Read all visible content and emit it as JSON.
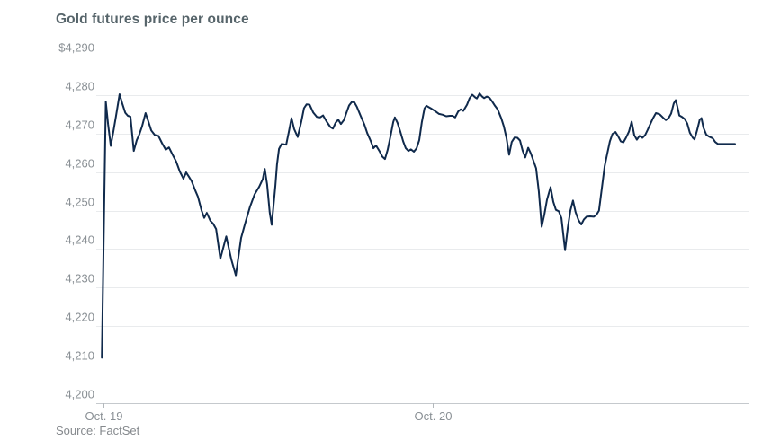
{
  "header": {
    "title": "Gold futures price per ounce"
  },
  "footer": {
    "source": "Source: FactSet"
  },
  "chart_data": {
    "type": "line",
    "title": "Gold futures price per ounce",
    "source": "Source: FactSet",
    "series_name": "Gold futures price (USD per ounce)",
    "ylim": [
      4200,
      4290
    ],
    "y_tick_step": 10,
    "y_tick_labels_top_to_bottom": [
      "$4,290",
      "4,280",
      "4,270",
      "4,260",
      "4,250",
      "4,240",
      "4,230",
      "4,220",
      "4,210",
      "4,200"
    ],
    "x_unit": "days, 0 = Oct. 19 tick, 1 = Oct. 20 tick",
    "x_ticks": [
      {
        "t": 0,
        "label": "Oct. 19"
      },
      {
        "t": 1,
        "label": "Oct. 20"
      }
    ],
    "grid": true,
    "legend": false,
    "colors": {
      "line": "#102a4c",
      "grid": "#e9ebed",
      "axis": "#c5c9cd",
      "tick": "#b3b8bc",
      "label": "#8a9095",
      "title": "#56646a",
      "source": "#85898d",
      "background": "#ffffff"
    },
    "points": [
      [
        -0.005,
        4211.8
      ],
      [
        0.007,
        4278.3
      ],
      [
        0.014,
        4272.5
      ],
      [
        0.022,
        4266.8
      ],
      [
        0.03,
        4270.5
      ],
      [
        0.038,
        4274.5
      ],
      [
        0.049,
        4280.2
      ],
      [
        0.057,
        4277.8
      ],
      [
        0.066,
        4275.4
      ],
      [
        0.074,
        4274.6
      ],
      [
        0.082,
        4274.4
      ],
      [
        0.092,
        4265.5
      ],
      [
        0.101,
        4268.3
      ],
      [
        0.109,
        4269.8
      ],
      [
        0.117,
        4271.8
      ],
      [
        0.128,
        4275.3
      ],
      [
        0.137,
        4273.0
      ],
      [
        0.145,
        4270.8
      ],
      [
        0.156,
        4269.6
      ],
      [
        0.167,
        4269.4
      ],
      [
        0.178,
        4267.5
      ],
      [
        0.189,
        4265.8
      ],
      [
        0.199,
        4266.4
      ],
      [
        0.21,
        4264.5
      ],
      [
        0.221,
        4262.7
      ],
      [
        0.232,
        4260.1
      ],
      [
        0.243,
        4258.3
      ],
      [
        0.251,
        4259.9
      ],
      [
        0.26,
        4258.7
      ],
      [
        0.268,
        4257.6
      ],
      [
        0.279,
        4255.2
      ],
      [
        0.287,
        4253.6
      ],
      [
        0.298,
        4250.0
      ],
      [
        0.306,
        4248.1
      ],
      [
        0.314,
        4249.4
      ],
      [
        0.325,
        4247.3
      ],
      [
        0.333,
        4246.6
      ],
      [
        0.342,
        4245.2
      ],
      [
        0.355,
        4237.5
      ],
      [
        0.373,
        4243.3
      ],
      [
        0.388,
        4237.4
      ],
      [
        0.402,
        4233.2
      ],
      [
        0.418,
        4242.9
      ],
      [
        0.432,
        4247.2
      ],
      [
        0.445,
        4251.0
      ],
      [
        0.459,
        4254.2
      ],
      [
        0.473,
        4256.2
      ],
      [
        0.484,
        4258.2
      ],
      [
        0.49,
        4260.8
      ],
      [
        0.497,
        4256.8
      ],
      [
        0.505,
        4249.5
      ],
      [
        0.511,
        4246.3
      ],
      [
        0.516,
        4251.0
      ],
      [
        0.522,
        4256.5
      ],
      [
        0.527,
        4262.0
      ],
      [
        0.533,
        4266.0
      ],
      [
        0.541,
        4267.3
      ],
      [
        0.549,
        4267.2
      ],
      [
        0.555,
        4267.1
      ],
      [
        0.563,
        4270.5
      ],
      [
        0.571,
        4274.0
      ],
      [
        0.579,
        4271.2
      ],
      [
        0.59,
        4269.1
      ],
      [
        0.601,
        4273.2
      ],
      [
        0.609,
        4276.6
      ],
      [
        0.617,
        4277.6
      ],
      [
        0.626,
        4277.5
      ],
      [
        0.637,
        4275.5
      ],
      [
        0.648,
        4274.3
      ],
      [
        0.658,
        4274.2
      ],
      [
        0.667,
        4274.7
      ],
      [
        0.678,
        4273.1
      ],
      [
        0.689,
        4271.7
      ],
      [
        0.697,
        4271.3
      ],
      [
        0.705,
        4272.8
      ],
      [
        0.713,
        4273.6
      ],
      [
        0.721,
        4272.5
      ],
      [
        0.73,
        4273.5
      ],
      [
        0.738,
        4275.4
      ],
      [
        0.746,
        4277.3
      ],
      [
        0.754,
        4278.2
      ],
      [
        0.762,
        4278.1
      ],
      [
        0.77,
        4276.9
      ],
      [
        0.779,
        4275.0
      ],
      [
        0.792,
        4272.4
      ],
      [
        0.801,
        4270.1
      ],
      [
        0.812,
        4268.0
      ],
      [
        0.82,
        4266.2
      ],
      [
        0.828,
        4266.9
      ],
      [
        0.839,
        4265.3
      ],
      [
        0.847,
        4264.0
      ],
      [
        0.855,
        4263.4
      ],
      [
        0.863,
        4265.8
      ],
      [
        0.872,
        4269.5
      ],
      [
        0.88,
        4273.0
      ],
      [
        0.885,
        4274.2
      ],
      [
        0.893,
        4272.8
      ],
      [
        0.902,
        4270.4
      ],
      [
        0.91,
        4268.0
      ],
      [
        0.918,
        4266.2
      ],
      [
        0.926,
        4265.5
      ],
      [
        0.934,
        4265.9
      ],
      [
        0.943,
        4265.3
      ],
      [
        0.951,
        4266.2
      ],
      [
        0.959,
        4268.3
      ],
      [
        0.967,
        4273.0
      ],
      [
        0.975,
        4276.5
      ],
      [
        0.981,
        4277.2
      ],
      [
        0.989,
        4276.8
      ],
      [
        0.997,
        4276.4
      ],
      [
        1.008,
        4275.8
      ],
      [
        1.019,
        4275.1
      ],
      [
        1.03,
        4274.9
      ],
      [
        1.041,
        4274.5
      ],
      [
        1.052,
        4274.6
      ],
      [
        1.06,
        4274.6
      ],
      [
        1.068,
        4274.2
      ],
      [
        1.077,
        4275.7
      ],
      [
        1.085,
        4276.3
      ],
      [
        1.093,
        4275.9
      ],
      [
        1.104,
        4277.5
      ],
      [
        1.112,
        4279.2
      ],
      [
        1.12,
        4280.1
      ],
      [
        1.129,
        4279.4
      ],
      [
        1.134,
        4279.1
      ],
      [
        1.142,
        4280.4
      ],
      [
        1.15,
        4279.6
      ],
      [
        1.156,
        4279.2
      ],
      [
        1.164,
        4279.6
      ],
      [
        1.172,
        4279.3
      ],
      [
        1.18,
        4278.4
      ],
      [
        1.189,
        4277.2
      ],
      [
        1.197,
        4276.3
      ],
      [
        1.208,
        4274.0
      ],
      [
        1.216,
        4271.8
      ],
      [
        1.224,
        4268.8
      ],
      [
        1.232,
        4264.5
      ],
      [
        1.24,
        4267.8
      ],
      [
        1.249,
        4269.0
      ],
      [
        1.257,
        4268.9
      ],
      [
        1.265,
        4268.2
      ],
      [
        1.273,
        4265.6
      ],
      [
        1.281,
        4263.8
      ],
      [
        1.29,
        4266.3
      ],
      [
        1.298,
        4264.8
      ],
      [
        1.306,
        4262.9
      ],
      [
        1.314,
        4261.0
      ],
      [
        1.322,
        4255.0
      ],
      [
        1.331,
        4245.8
      ],
      [
        1.339,
        4249.0
      ],
      [
        1.347,
        4252.8
      ],
      [
        1.358,
        4256.1
      ],
      [
        1.366,
        4252.3
      ],
      [
        1.374,
        4250.2
      ],
      [
        1.383,
        4249.8
      ],
      [
        1.391,
        4248.0
      ],
      [
        1.402,
        4239.7
      ],
      [
        1.41,
        4245.5
      ],
      [
        1.418,
        4250.0
      ],
      [
        1.426,
        4252.6
      ],
      [
        1.434,
        4249.6
      ],
      [
        1.443,
        4247.5
      ],
      [
        1.451,
        4246.4
      ],
      [
        1.459,
        4247.7
      ],
      [
        1.467,
        4248.4
      ],
      [
        1.478,
        4248.5
      ],
      [
        1.489,
        4248.4
      ],
      [
        1.497,
        4248.9
      ],
      [
        1.505,
        4250.0
      ],
      [
        1.514,
        4256.0
      ],
      [
        1.522,
        4261.5
      ],
      [
        1.53,
        4264.8
      ],
      [
        1.538,
        4268.0
      ],
      [
        1.546,
        4269.9
      ],
      [
        1.555,
        4270.4
      ],
      [
        1.563,
        4269.3
      ],
      [
        1.571,
        4268.0
      ],
      [
        1.579,
        4267.7
      ],
      [
        1.587,
        4268.9
      ],
      [
        1.596,
        4270.5
      ],
      [
        1.604,
        4273.1
      ],
      [
        1.612,
        4269.6
      ],
      [
        1.62,
        4268.4
      ],
      [
        1.628,
        4269.4
      ],
      [
        1.637,
        4268.9
      ],
      [
        1.645,
        4269.6
      ],
      [
        1.653,
        4271.0
      ],
      [
        1.661,
        4272.5
      ],
      [
        1.669,
        4274.0
      ],
      [
        1.678,
        4275.3
      ],
      [
        1.689,
        4275.0
      ],
      [
        1.7,
        4274.1
      ],
      [
        1.708,
        4273.5
      ],
      [
        1.716,
        4274.0
      ],
      [
        1.724,
        4275.2
      ],
      [
        1.732,
        4277.8
      ],
      [
        1.738,
        4278.7
      ],
      [
        1.743,
        4277.0
      ],
      [
        1.749,
        4274.7
      ],
      [
        1.757,
        4274.3
      ],
      [
        1.765,
        4273.8
      ],
      [
        1.773,
        4272.6
      ],
      [
        1.781,
        4270.2
      ],
      [
        1.79,
        4268.9
      ],
      [
        1.795,
        4268.5
      ],
      [
        1.803,
        4270.9
      ],
      [
        1.811,
        4273.6
      ],
      [
        1.816,
        4274.0
      ],
      [
        1.822,
        4271.5
      ],
      [
        1.831,
        4269.7
      ],
      [
        1.839,
        4269.2
      ],
      [
        1.85,
        4268.8
      ],
      [
        1.858,
        4267.8
      ],
      [
        1.866,
        4267.3
      ],
      [
        1.88,
        4267.3
      ],
      [
        1.893,
        4267.3
      ],
      [
        1.907,
        4267.3
      ],
      [
        1.918,
        4267.3
      ]
    ]
  }
}
